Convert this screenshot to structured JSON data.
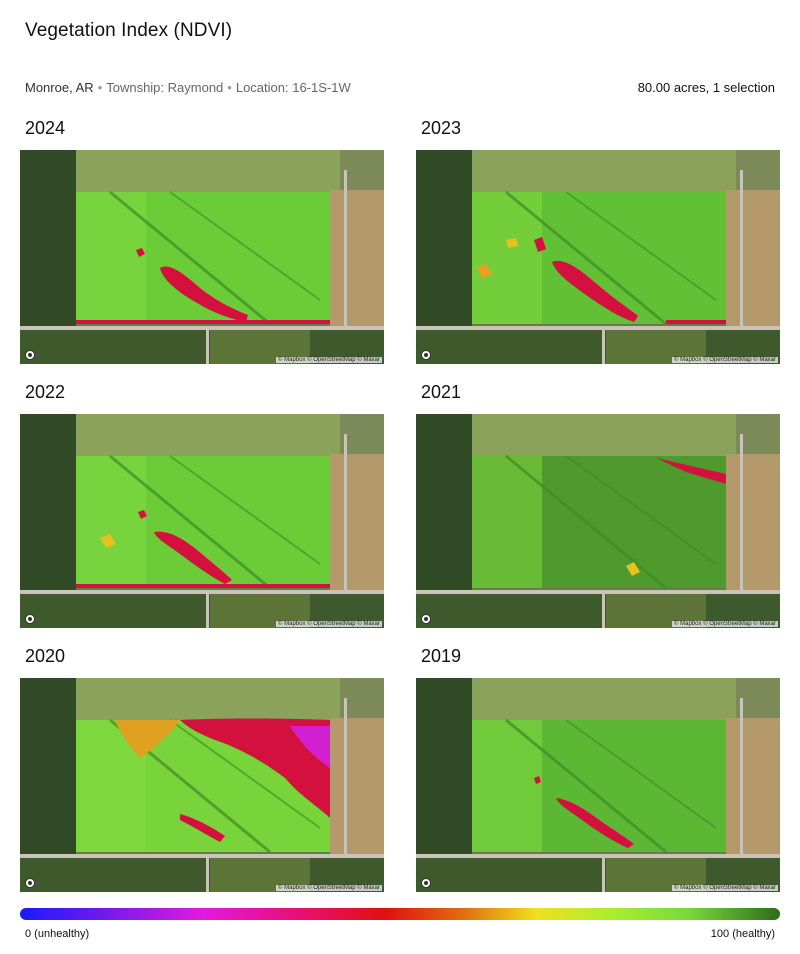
{
  "header": {
    "title": "Vegetation Index (NDVI)",
    "location": "Monroe, AR",
    "township": "Township: Raymond",
    "section": "Location: 16-1S-1W",
    "selection_summary": "80.00 acres, 1 selection"
  },
  "panels": [
    {
      "year": "2024",
      "attribution": "© Mapbox © OpenStreetMap © Maxar"
    },
    {
      "year": "2023",
      "attribution": "© Mapbox © OpenStreetMap © Maxar"
    },
    {
      "year": "2022",
      "attribution": "© Mapbox © OpenStreetMap © Maxar"
    },
    {
      "year": "2021",
      "attribution": "© Mapbox © OpenStreetMap © Maxar"
    },
    {
      "year": "2020",
      "attribution": "© Mapbox © OpenStreetMap © Maxar"
    },
    {
      "year": "2019",
      "attribution": "© Mapbox © OpenStreetMap © Maxar"
    }
  ],
  "legend": {
    "low_label": "0 (unhealthy)",
    "high_label": "100 (healthy)"
  },
  "colors": {
    "healthy_green": "#7cd83a",
    "dark_green": "#4a8f2a",
    "stress_red": "#d8103a",
    "stress_orange": "#e0a020",
    "stress_magenta": "#d020d0"
  }
}
